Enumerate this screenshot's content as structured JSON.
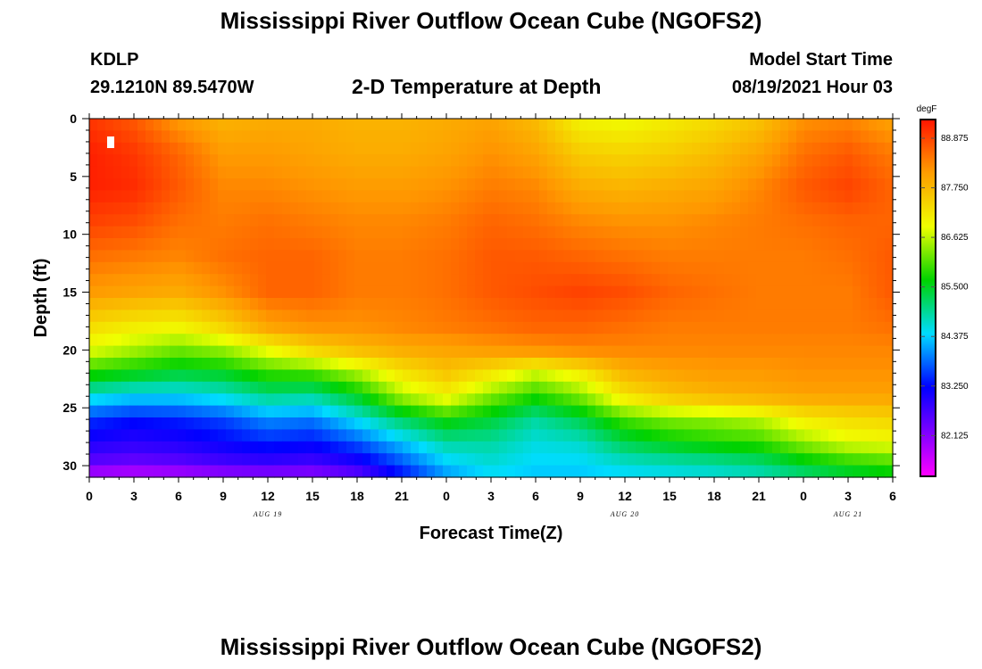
{
  "header": {
    "title": "Mississippi River Outflow Ocean Cube (NGOFS2)",
    "station": "KDLP",
    "coords": "29.1210N  89.5470W",
    "chart_title": "2-D Temperature at Depth",
    "model_label": "Model Start Time",
    "model_time": "08/19/2021 Hour 03"
  },
  "footer": {
    "title": "Mississippi River Outflow Ocean Cube (NGOFS2)"
  },
  "chart_data": {
    "type": "heatmap",
    "title": "2-D Temperature at Depth",
    "xlabel": "Forecast Time(Z)",
    "ylabel": "Depth (ft)",
    "x_ticks": [
      0,
      3,
      6,
      9,
      12,
      15,
      18,
      21,
      24,
      27,
      30,
      33,
      36,
      39,
      42,
      45,
      48,
      51,
      54
    ],
    "x_tick_labels": [
      "0",
      "3",
      "6",
      "9",
      "12",
      "15",
      "18",
      "21",
      "0",
      "3",
      "6",
      "9",
      "12",
      "15",
      "18",
      "21",
      "0",
      "3",
      "6"
    ],
    "x_range": [
      0,
      54
    ],
    "date_labels": [
      {
        "hour": 12,
        "text": "AUG 19"
      },
      {
        "hour": 36,
        "text": "AUG 20"
      },
      {
        "hour": 51,
        "text": "AUG 21"
      }
    ],
    "y_ticks": [
      0,
      5,
      10,
      15,
      20,
      25,
      30
    ],
    "y_range": [
      0,
      31
    ],
    "y_inverted": true,
    "colorbar": {
      "unit": "degF",
      "min": 81.2,
      "max": 89.3,
      "tick_values": [
        88.875,
        87.75,
        86.625,
        85.5,
        84.375,
        83.25,
        82.125
      ],
      "tick_labels": [
        "88.875",
        "87.750",
        "86.625",
        "85.500",
        "84.375",
        "83.250",
        "82.125"
      ]
    },
    "grid_hours": [
      0,
      3,
      6,
      9,
      12,
      15,
      18,
      21,
      24,
      27,
      30,
      33,
      36,
      39,
      42,
      45,
      48,
      51,
      54
    ],
    "grid_depths": [
      0,
      3,
      6,
      9,
      12,
      15,
      18,
      20,
      22,
      24,
      26,
      28,
      30,
      31
    ],
    "values": [
      [
        89.0,
        88.7,
        88.1,
        87.8,
        87.9,
        87.9,
        87.8,
        87.8,
        87.9,
        88.0,
        87.7,
        87.0,
        86.9,
        87.1,
        87.3,
        87.6,
        88.2,
        88.3,
        88.0
      ],
      [
        89.2,
        89.0,
        88.6,
        88.1,
        88.1,
        88.0,
        87.9,
        87.9,
        88.0,
        88.2,
        88.0,
        87.5,
        87.4,
        87.5,
        87.7,
        88.0,
        88.5,
        88.7,
        88.4
      ],
      [
        89.2,
        89.1,
        88.7,
        88.3,
        88.3,
        88.2,
        88.1,
        88.1,
        88.2,
        88.4,
        88.3,
        87.9,
        87.8,
        87.9,
        88.0,
        88.3,
        88.7,
        88.9,
        88.6
      ],
      [
        88.9,
        88.8,
        88.5,
        88.4,
        88.5,
        88.4,
        88.3,
        88.3,
        88.4,
        88.6,
        88.5,
        88.3,
        88.2,
        88.2,
        88.3,
        88.4,
        88.5,
        88.6,
        88.6
      ],
      [
        88.5,
        88.4,
        88.3,
        88.5,
        88.6,
        88.6,
        88.4,
        88.4,
        88.5,
        88.7,
        88.7,
        88.6,
        88.5,
        88.4,
        88.4,
        88.4,
        88.4,
        88.5,
        88.7
      ],
      [
        88.1,
        88.0,
        87.9,
        88.2,
        88.6,
        88.6,
        88.4,
        88.4,
        88.5,
        88.7,
        88.8,
        88.9,
        88.8,
        88.6,
        88.5,
        88.4,
        88.4,
        88.4,
        88.7
      ],
      [
        87.3,
        87.1,
        87.0,
        87.4,
        88.0,
        88.2,
        88.2,
        88.3,
        88.4,
        88.5,
        88.6,
        88.6,
        88.5,
        88.4,
        88.4,
        88.4,
        88.4,
        88.4,
        88.5
      ],
      [
        86.8,
        86.5,
        86.2,
        86.4,
        86.9,
        87.4,
        87.7,
        87.9,
        88.0,
        88.1,
        88.2,
        88.3,
        88.3,
        88.3,
        88.3,
        88.3,
        88.3,
        88.3,
        88.3
      ],
      [
        85.8,
        85.6,
        85.4,
        85.5,
        85.9,
        86.0,
        86.5,
        87.2,
        87.6,
        87.2,
        86.7,
        87.1,
        87.8,
        88.0,
        88.1,
        88.1,
        88.2,
        88.2,
        88.2
      ],
      [
        84.6,
        84.4,
        84.4,
        84.6,
        85.0,
        84.9,
        85.5,
        86.5,
        87.0,
        86.3,
        85.8,
        86.3,
        87.2,
        87.6,
        87.8,
        87.9,
        88.0,
        88.0,
        88.0
      ],
      [
        83.5,
        83.3,
        83.4,
        83.6,
        84.0,
        83.9,
        84.5,
        85.2,
        85.7,
        85.4,
        84.9,
        85.3,
        86.0,
        86.3,
        86.4,
        86.6,
        87.1,
        87.3,
        87.4
      ],
      [
        83.0,
        82.9,
        83.0,
        83.2,
        83.4,
        83.3,
        83.7,
        84.3,
        84.9,
        84.9,
        84.6,
        84.7,
        85.3,
        85.6,
        85.8,
        85.9,
        86.4,
        86.8,
        86.9
      ],
      [
        82.4,
        82.3,
        82.4,
        82.6,
        82.7,
        82.6,
        82.9,
        83.6,
        84.3,
        84.6,
        84.4,
        84.4,
        84.6,
        84.7,
        84.8,
        85.0,
        85.4,
        85.7,
        85.9
      ],
      [
        81.6,
        81.5,
        81.6,
        81.8,
        81.9,
        81.9,
        82.3,
        83.2,
        84.0,
        84.4,
        84.3,
        84.3,
        84.4,
        84.5,
        84.6,
        84.7,
        85.0,
        85.3,
        85.5
      ]
    ]
  }
}
